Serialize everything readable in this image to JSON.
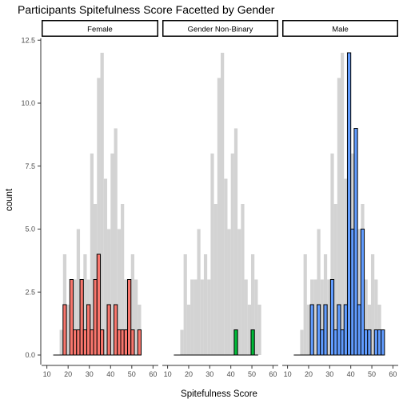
{
  "chart_data": {
    "type": "bar",
    "title": "Participants Spitefulness Score Facetted by Gender",
    "xlabel": "Spitefulness Score",
    "ylabel": "count",
    "xlim": [
      10,
      60
    ],
    "ylim": [
      0,
      12.5
    ],
    "x_ticks": [
      "10",
      "20",
      "30",
      "40",
      "50",
      "60"
    ],
    "y_ticks": [
      "0.0",
      "2.5",
      "5.0",
      "7.5",
      "10.0",
      "12.5"
    ],
    "bin_width": 1.6,
    "bins": [
      16.8,
      18.4,
      20.0,
      21.6,
      23.2,
      24.8,
      26.4,
      28.0,
      29.6,
      31.2,
      32.8,
      34.4,
      36.0,
      37.6,
      39.2,
      40.8,
      42.4,
      44.0,
      45.6,
      47.2,
      48.8,
      50.4,
      52.0,
      53.6,
      55.2
    ],
    "background": {
      "color": "#d3d3d3",
      "values": [
        1,
        4,
        2,
        3,
        3,
        5,
        3,
        4,
        3,
        8,
        6,
        11,
        12,
        7,
        5,
        8,
        9,
        5,
        6,
        3,
        2,
        4,
        3,
        2,
        0
      ]
    },
    "facets": [
      {
        "label": "Female",
        "color": "#f8766d",
        "values": [
          0,
          2,
          0,
          3,
          1,
          1,
          3,
          1,
          2,
          1,
          3,
          4,
          1,
          0,
          2,
          0,
          2,
          1,
          1,
          1,
          3,
          1,
          0,
          1,
          0
        ]
      },
      {
        "label": "Gender Non-Binary",
        "color": "#00ba38",
        "values": [
          0,
          0,
          0,
          0,
          0,
          0,
          0,
          0,
          0,
          0,
          0,
          0,
          0,
          0,
          0,
          0,
          1,
          0,
          0,
          0,
          0,
          1,
          0,
          0,
          0
        ]
      },
      {
        "label": "Male",
        "color": "#619cff",
        "values": [
          0,
          0,
          0,
          2,
          0,
          2,
          1,
          2,
          0,
          3,
          1,
          2,
          1,
          2,
          12,
          5,
          9,
          2,
          5,
          1,
          1,
          0,
          1,
          1,
          1
        ]
      }
    ]
  }
}
